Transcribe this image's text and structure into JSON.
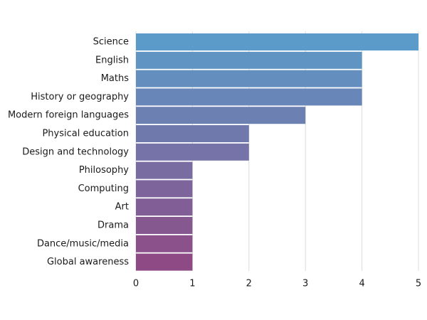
{
  "chart_data": {
    "type": "bar",
    "orientation": "horizontal",
    "title": "",
    "xlabel": "",
    "ylabel": "",
    "categories": [
      "Science",
      "English",
      "Maths",
      "History or geography",
      "Modern foreign languages",
      "Physical education",
      "Design and technology",
      "Philosophy",
      "Computing",
      "Art",
      "Drama",
      "Dance/music/media",
      "Global awareness"
    ],
    "values": [
      5,
      4,
      4,
      4,
      3,
      2,
      2,
      1,
      1,
      1,
      1,
      1,
      1
    ],
    "xlim": [
      0,
      5
    ],
    "xticks": [
      "0",
      "1",
      "2",
      "3",
      "4",
      "5"
    ],
    "grid": true,
    "legend": "none",
    "colors": {
      "gradient_start": "#5b9bc9",
      "gradient_end": "#8e4a84",
      "grid": "#dcdcdc",
      "text": "#1a1a1a"
    }
  }
}
